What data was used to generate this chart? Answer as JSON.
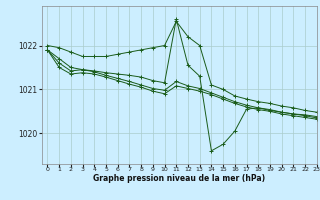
{
  "background_color": "#cceeff",
  "grid_color": "#aacccc",
  "line_color": "#1a5c1a",
  "title": "Graphe pression niveau de la mer (hPa)",
  "xlim": [
    -0.5,
    23
  ],
  "ylim": [
    1019.3,
    1022.9
  ],
  "yticks": [
    1020,
    1021,
    1022
  ],
  "xticks": [
    0,
    1,
    2,
    3,
    4,
    5,
    6,
    7,
    8,
    9,
    10,
    11,
    12,
    13,
    14,
    15,
    16,
    17,
    18,
    19,
    20,
    21,
    22,
    23
  ],
  "series": [
    [
      1022.0,
      1021.95,
      1021.85,
      1021.75,
      1021.75,
      1021.75,
      1021.8,
      1021.85,
      1021.9,
      1021.95,
      1022.0,
      1022.55,
      1022.2,
      1022.0,
      1021.1,
      1021.0,
      1020.85,
      1020.78,
      1020.72,
      1020.68,
      1020.62,
      1020.58,
      1020.52,
      1020.48
    ],
    [
      1021.9,
      1021.7,
      1021.5,
      1021.45,
      1021.42,
      1021.38,
      1021.35,
      1021.32,
      1021.28,
      1021.2,
      1021.15,
      1022.6,
      1021.55,
      1021.3,
      1019.6,
      1019.75,
      1020.05,
      1020.55,
      1020.58,
      1020.52,
      1020.48,
      1020.44,
      1020.42,
      1020.38
    ],
    [
      1021.9,
      1021.6,
      1021.42,
      1021.45,
      1021.4,
      1021.32,
      1021.25,
      1021.18,
      1021.1,
      1021.02,
      1020.98,
      1021.18,
      1021.08,
      1021.02,
      1020.92,
      1020.82,
      1020.72,
      1020.64,
      1020.58,
      1020.54,
      1020.48,
      1020.44,
      1020.4,
      1020.35
    ],
    [
      1021.9,
      1021.5,
      1021.35,
      1021.38,
      1021.35,
      1021.28,
      1021.2,
      1021.12,
      1021.05,
      1020.96,
      1020.9,
      1021.08,
      1021.02,
      1020.96,
      1020.88,
      1020.78,
      1020.68,
      1020.6,
      1020.54,
      1020.5,
      1020.44,
      1020.4,
      1020.36,
      1020.32
    ]
  ]
}
